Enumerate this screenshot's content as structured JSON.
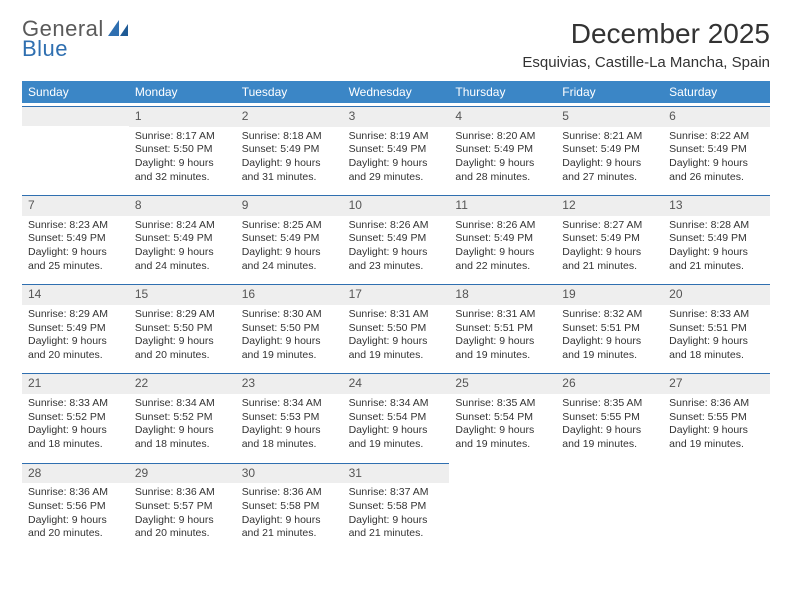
{
  "logo": {
    "top": "General",
    "bottom": "Blue"
  },
  "title": "December 2025",
  "subtitle": "Esquivias, Castille-La Mancha, Spain",
  "colors": {
    "header_bg": "#3b86c6",
    "header_text": "#ffffff",
    "daynum_bg": "#eeeeee",
    "daynum_border": "#2f6fb0",
    "text": "#333333",
    "logo_gray": "#5a5a5a",
    "logo_blue": "#2f6fb0"
  },
  "weekdays": [
    "Sunday",
    "Monday",
    "Tuesday",
    "Wednesday",
    "Thursday",
    "Friday",
    "Saturday"
  ],
  "first_weekday_index": 1,
  "days": [
    {
      "n": 1,
      "sunrise": "8:17 AM",
      "sunset": "5:50 PM",
      "daylight": "9 hours and 32 minutes."
    },
    {
      "n": 2,
      "sunrise": "8:18 AM",
      "sunset": "5:49 PM",
      "daylight": "9 hours and 31 minutes."
    },
    {
      "n": 3,
      "sunrise": "8:19 AM",
      "sunset": "5:49 PM",
      "daylight": "9 hours and 29 minutes."
    },
    {
      "n": 4,
      "sunrise": "8:20 AM",
      "sunset": "5:49 PM",
      "daylight": "9 hours and 28 minutes."
    },
    {
      "n": 5,
      "sunrise": "8:21 AM",
      "sunset": "5:49 PM",
      "daylight": "9 hours and 27 minutes."
    },
    {
      "n": 6,
      "sunrise": "8:22 AM",
      "sunset": "5:49 PM",
      "daylight": "9 hours and 26 minutes."
    },
    {
      "n": 7,
      "sunrise": "8:23 AM",
      "sunset": "5:49 PM",
      "daylight": "9 hours and 25 minutes."
    },
    {
      "n": 8,
      "sunrise": "8:24 AM",
      "sunset": "5:49 PM",
      "daylight": "9 hours and 24 minutes."
    },
    {
      "n": 9,
      "sunrise": "8:25 AM",
      "sunset": "5:49 PM",
      "daylight": "9 hours and 24 minutes."
    },
    {
      "n": 10,
      "sunrise": "8:26 AM",
      "sunset": "5:49 PM",
      "daylight": "9 hours and 23 minutes."
    },
    {
      "n": 11,
      "sunrise": "8:26 AM",
      "sunset": "5:49 PM",
      "daylight": "9 hours and 22 minutes."
    },
    {
      "n": 12,
      "sunrise": "8:27 AM",
      "sunset": "5:49 PM",
      "daylight": "9 hours and 21 minutes."
    },
    {
      "n": 13,
      "sunrise": "8:28 AM",
      "sunset": "5:49 PM",
      "daylight": "9 hours and 21 minutes."
    },
    {
      "n": 14,
      "sunrise": "8:29 AM",
      "sunset": "5:49 PM",
      "daylight": "9 hours and 20 minutes."
    },
    {
      "n": 15,
      "sunrise": "8:29 AM",
      "sunset": "5:50 PM",
      "daylight": "9 hours and 20 minutes."
    },
    {
      "n": 16,
      "sunrise": "8:30 AM",
      "sunset": "5:50 PM",
      "daylight": "9 hours and 19 minutes."
    },
    {
      "n": 17,
      "sunrise": "8:31 AM",
      "sunset": "5:50 PM",
      "daylight": "9 hours and 19 minutes."
    },
    {
      "n": 18,
      "sunrise": "8:31 AM",
      "sunset": "5:51 PM",
      "daylight": "9 hours and 19 minutes."
    },
    {
      "n": 19,
      "sunrise": "8:32 AM",
      "sunset": "5:51 PM",
      "daylight": "9 hours and 19 minutes."
    },
    {
      "n": 20,
      "sunrise": "8:33 AM",
      "sunset": "5:51 PM",
      "daylight": "9 hours and 18 minutes."
    },
    {
      "n": 21,
      "sunrise": "8:33 AM",
      "sunset": "5:52 PM",
      "daylight": "9 hours and 18 minutes."
    },
    {
      "n": 22,
      "sunrise": "8:34 AM",
      "sunset": "5:52 PM",
      "daylight": "9 hours and 18 minutes."
    },
    {
      "n": 23,
      "sunrise": "8:34 AM",
      "sunset": "5:53 PM",
      "daylight": "9 hours and 18 minutes."
    },
    {
      "n": 24,
      "sunrise": "8:34 AM",
      "sunset": "5:54 PM",
      "daylight": "9 hours and 19 minutes."
    },
    {
      "n": 25,
      "sunrise": "8:35 AM",
      "sunset": "5:54 PM",
      "daylight": "9 hours and 19 minutes."
    },
    {
      "n": 26,
      "sunrise": "8:35 AM",
      "sunset": "5:55 PM",
      "daylight": "9 hours and 19 minutes."
    },
    {
      "n": 27,
      "sunrise": "8:36 AM",
      "sunset": "5:55 PM",
      "daylight": "9 hours and 19 minutes."
    },
    {
      "n": 28,
      "sunrise": "8:36 AM",
      "sunset": "5:56 PM",
      "daylight": "9 hours and 20 minutes."
    },
    {
      "n": 29,
      "sunrise": "8:36 AM",
      "sunset": "5:57 PM",
      "daylight": "9 hours and 20 minutes."
    },
    {
      "n": 30,
      "sunrise": "8:36 AM",
      "sunset": "5:58 PM",
      "daylight": "9 hours and 21 minutes."
    },
    {
      "n": 31,
      "sunrise": "8:37 AM",
      "sunset": "5:58 PM",
      "daylight": "9 hours and 21 minutes."
    }
  ],
  "labels": {
    "sunrise": "Sunrise:",
    "sunset": "Sunset:",
    "daylight": "Daylight:"
  }
}
